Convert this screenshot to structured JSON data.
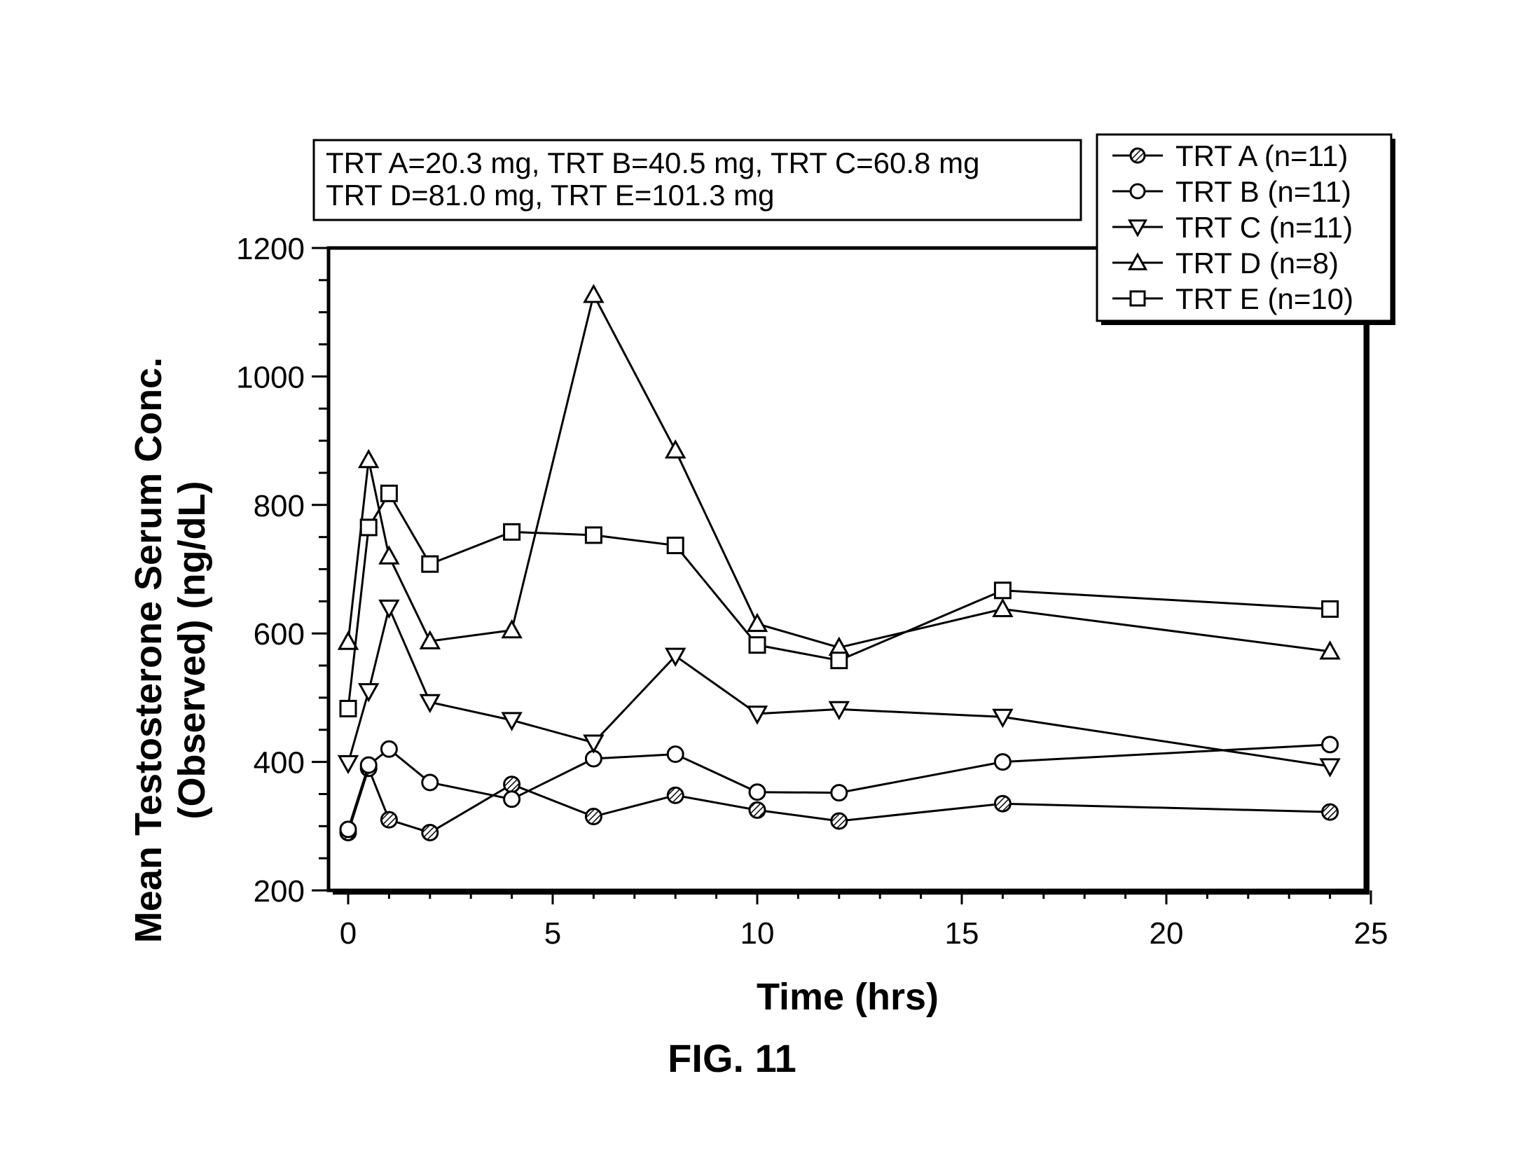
{
  "figure_label": "FIG. 11",
  "note": {
    "line1": "TRT A=20.3 mg, TRT B=40.5 mg, TRT C=60.8 mg",
    "line2": "TRT D=81.0 mg, TRT E=101.3 mg"
  },
  "chart_data": {
    "type": "line",
    "xlabel": "Time (hrs)",
    "ylabel_line1": "Mean Testosterone Serum Conc.",
    "ylabel_line2": "(Observed) (ng/dL)",
    "xlim": [
      0,
      25
    ],
    "ylim": [
      200,
      1200
    ],
    "x_ticks": [
      0,
      5,
      10,
      15,
      20,
      25
    ],
    "y_ticks": [
      200,
      400,
      600,
      800,
      1000,
      1200
    ],
    "x_tick_labels": [
      "0",
      "5",
      "10",
      "15",
      "20",
      "25"
    ],
    "y_tick_labels": [
      "200",
      "400",
      "600",
      "800",
      "1000",
      "1200"
    ],
    "grid": false,
    "legend_position": "top-right",
    "x": [
      0,
      0.5,
      1,
      2,
      4,
      6,
      8,
      10,
      12,
      16,
      24
    ],
    "series": [
      {
        "name": "TRT A (n=11)",
        "marker": "circle-hatched",
        "values": [
          290,
          390,
          310,
          290,
          365,
          315,
          348,
          325,
          308,
          335,
          322
        ]
      },
      {
        "name": "TRT B (n=11)",
        "marker": "circle-open",
        "values": [
          295,
          395,
          420,
          368,
          342,
          405,
          412,
          353,
          352,
          400,
          427
        ]
      },
      {
        "name": "TRT C (n=11)",
        "marker": "triangle-down",
        "values": [
          398,
          510,
          640,
          493,
          465,
          430,
          565,
          475,
          482,
          470,
          393
        ]
      },
      {
        "name": "TRT D (n=8)",
        "marker": "triangle-up",
        "values": [
          587,
          870,
          720,
          588,
          605,
          1127,
          885,
          615,
          578,
          638,
          572
        ]
      },
      {
        "name": "TRT E (n=10)",
        "marker": "square-open",
        "values": [
          483,
          765,
          818,
          708,
          758,
          753,
          737,
          582,
          558,
          667,
          638
        ]
      }
    ]
  }
}
